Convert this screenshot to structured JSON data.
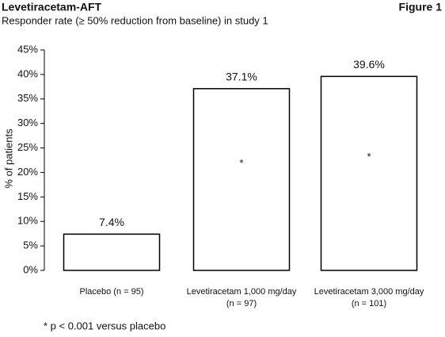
{
  "chart_data": {
    "type": "bar",
    "title": "Levetiracetam-AFT",
    "figure_label": "Figure 1",
    "subtitle": "Responder rate (≥ 50% reduction from baseline) in study 1",
    "y_label": "% of patients",
    "categories": [
      "Placebo (n = 95)",
      "Levetiracetam 1,000 mg/day\n(n = 97)",
      "Levetiracetam 3,000 mg/day\n(n = 101)"
    ],
    "values": [
      7.4,
      37.1,
      39.6
    ],
    "value_labels": [
      "7.4%",
      "37.1%",
      "39.6%"
    ],
    "significance": [
      null,
      "*",
      "*"
    ],
    "footnote": "* p < 0.001 versus placebo",
    "color": "#ffffff",
    "edge_color": "#000000",
    "ylim": [
      0,
      45
    ],
    "yticks": [
      {
        "value": 0,
        "label": "0%"
      },
      {
        "value": 5,
        "label": "5%"
      },
      {
        "value": 10,
        "label": "10%"
      },
      {
        "value": 15,
        "label": "15%"
      },
      {
        "value": 20,
        "label": "20%"
      },
      {
        "value": 25,
        "label": "25%"
      },
      {
        "value": 30,
        "label": "30%"
      },
      {
        "value": 35,
        "label": "35%"
      },
      {
        "value": 40,
        "label": "40%"
      },
      {
        "value": 45,
        "label": "45%"
      }
    ],
    "grid": false
  }
}
